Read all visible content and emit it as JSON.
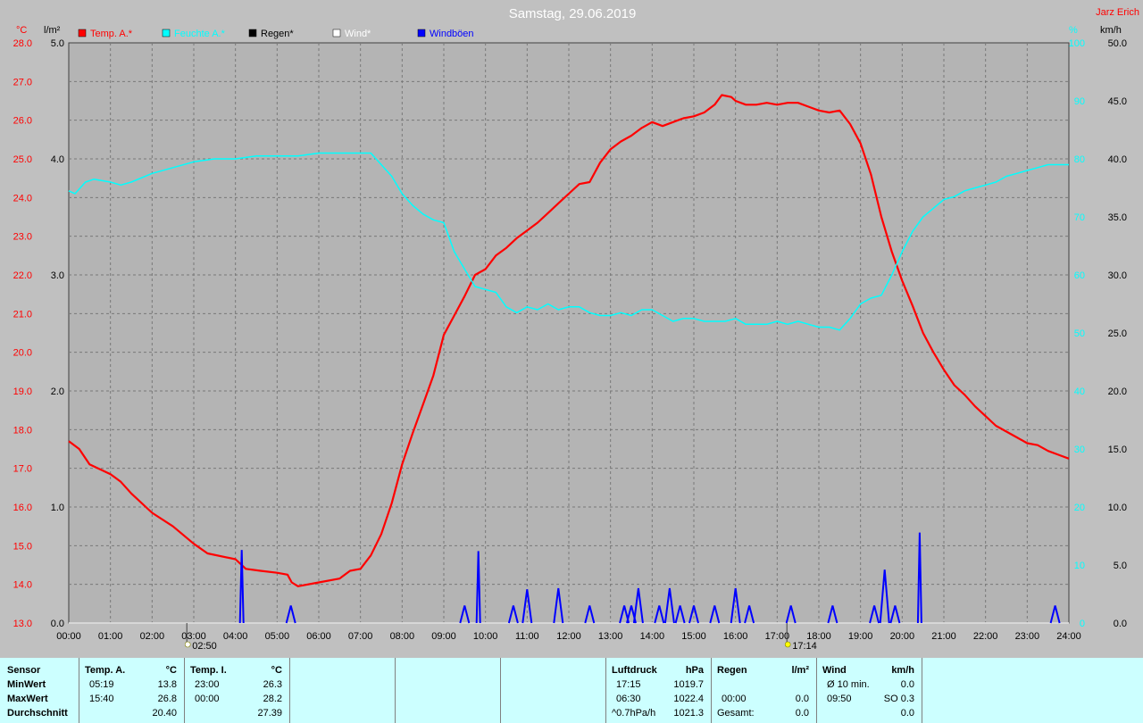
{
  "title": "Samstag, 29.06.2019",
  "author": "Jarz Erich",
  "axes": {
    "left_unit_temp": "°C",
    "left_unit_rain": "l/m²",
    "right_unit_hum": "%",
    "right_unit_wind": "km/h"
  },
  "colors": {
    "background": "#c0c0c0",
    "plot_bg": "#b4b4b4",
    "temp": "#ff0000",
    "humidity": "#00ffff",
    "rain": "#000000",
    "wind": "#ffffff",
    "gusts": "#0000ff",
    "footer": "#ccffff"
  },
  "chart_data": {
    "type": "line",
    "grid": true,
    "legend_placement": "top-left",
    "x_tick_labels": [
      "00:00",
      "01:00",
      "02:00",
      "03:00",
      "04:00",
      "05:00",
      "06:00",
      "07:00",
      "08:00",
      "09:00",
      "10:00",
      "11:00",
      "12:00",
      "13:00",
      "14:00",
      "15:00",
      "16:00",
      "17:00",
      "18:00",
      "19:00",
      "20:00",
      "21:00",
      "22:00",
      "23:00",
      "24:00"
    ],
    "xlim_hours": [
      0,
      24
    ],
    "temp_ticks": [
      "28.0",
      "27.0",
      "26.0",
      "25.0",
      "24.0",
      "23.0",
      "22.0",
      "21.0",
      "20.0",
      "19.0",
      "18.0",
      "17.0",
      "16.0",
      "15.0",
      "14.0",
      "13.0"
    ],
    "rain_ticks": [
      "5.0",
      "4.0",
      "3.0",
      "2.0",
      "1.0",
      "0.0"
    ],
    "hum_ticks": [
      "100",
      "90",
      "80",
      "70",
      "60",
      "50",
      "40",
      "30",
      "20",
      "10",
      "0"
    ],
    "wind_ticks": [
      "50.0",
      "45.0",
      "40.0",
      "35.0",
      "30.0",
      "25.0",
      "20.0",
      "15.0",
      "10.0",
      "5.0",
      "0.0"
    ],
    "ylim_temp": [
      13,
      28
    ],
    "ylim_rain": [
      0,
      5
    ],
    "ylim_humidity": [
      0,
      100
    ],
    "ylim_wind": [
      0,
      50
    ],
    "sun_markers": [
      {
        "hour": 2.833,
        "label": "02:50"
      },
      {
        "hour": 17.233,
        "label": "17:14"
      }
    ],
    "series": [
      {
        "name": "Temp. A.*",
        "axis": "temp",
        "color": "#ff0000",
        "points": [
          [
            0,
            17.7
          ],
          [
            0.25,
            17.5
          ],
          [
            0.5,
            17.1
          ],
          [
            1,
            16.85
          ],
          [
            1.25,
            16.65
          ],
          [
            1.5,
            16.35
          ],
          [
            2,
            15.85
          ],
          [
            2.5,
            15.5
          ],
          [
            3,
            15.05
          ],
          [
            3.33,
            14.8
          ],
          [
            4,
            14.65
          ],
          [
            4.25,
            14.4
          ],
          [
            4.6,
            14.35
          ],
          [
            5,
            14.3
          ],
          [
            5.25,
            14.25
          ],
          [
            5.35,
            14.05
          ],
          [
            5.5,
            13.95
          ],
          [
            6,
            14.05
          ],
          [
            6.5,
            14.15
          ],
          [
            6.75,
            14.35
          ],
          [
            7,
            14.4
          ],
          [
            7.25,
            14.75
          ],
          [
            7.5,
            15.3
          ],
          [
            7.75,
            16.1
          ],
          [
            8,
            17.1
          ],
          [
            8.25,
            17.9
          ],
          [
            8.5,
            18.65
          ],
          [
            8.75,
            19.4
          ],
          [
            9,
            20.45
          ],
          [
            9.25,
            20.95
          ],
          [
            9.5,
            21.45
          ],
          [
            9.75,
            22.0
          ],
          [
            10,
            22.15
          ],
          [
            10.25,
            22.5
          ],
          [
            10.5,
            22.7
          ],
          [
            10.75,
            22.95
          ],
          [
            11,
            23.15
          ],
          [
            11.25,
            23.35
          ],
          [
            11.5,
            23.6
          ],
          [
            11.75,
            23.85
          ],
          [
            12,
            24.1
          ],
          [
            12.25,
            24.35
          ],
          [
            12.5,
            24.4
          ],
          [
            12.75,
            24.9
          ],
          [
            13,
            25.25
          ],
          [
            13.25,
            25.45
          ],
          [
            13.5,
            25.6
          ],
          [
            13.75,
            25.8
          ],
          [
            14,
            25.95
          ],
          [
            14.25,
            25.85
          ],
          [
            14.5,
            25.95
          ],
          [
            14.75,
            26.05
          ],
          [
            15,
            26.1
          ],
          [
            15.25,
            26.2
          ],
          [
            15.5,
            26.4
          ],
          [
            15.67,
            26.65
          ],
          [
            15.9,
            26.6
          ],
          [
            16,
            26.5
          ],
          [
            16.25,
            26.4
          ],
          [
            16.5,
            26.4
          ],
          [
            16.75,
            26.45
          ],
          [
            17,
            26.4
          ],
          [
            17.25,
            26.45
          ],
          [
            17.5,
            26.45
          ],
          [
            17.75,
            26.35
          ],
          [
            18,
            26.25
          ],
          [
            18.25,
            26.2
          ],
          [
            18.5,
            26.25
          ],
          [
            18.75,
            25.9
          ],
          [
            19,
            25.4
          ],
          [
            19.25,
            24.6
          ],
          [
            19.5,
            23.5
          ],
          [
            19.75,
            22.6
          ],
          [
            20,
            21.85
          ],
          [
            20.25,
            21.2
          ],
          [
            20.5,
            20.5
          ],
          [
            20.75,
            20.0
          ],
          [
            21,
            19.55
          ],
          [
            21.25,
            19.15
          ],
          [
            21.5,
            18.9
          ],
          [
            21.75,
            18.6
          ],
          [
            22,
            18.35
          ],
          [
            22.25,
            18.1
          ],
          [
            22.5,
            17.95
          ],
          [
            22.75,
            17.8
          ],
          [
            23,
            17.65
          ],
          [
            23.25,
            17.6
          ],
          [
            23.5,
            17.45
          ],
          [
            23.75,
            17.35
          ],
          [
            24,
            17.25
          ]
        ]
      },
      {
        "name": "Feuchte A.*",
        "axis": "humidity",
        "color": "#00ffff",
        "points": [
          [
            0,
            74.5
          ],
          [
            0.15,
            74
          ],
          [
            0.4,
            76
          ],
          [
            0.6,
            76.5
          ],
          [
            1,
            76
          ],
          [
            1.25,
            75.5
          ],
          [
            1.5,
            76
          ],
          [
            2,
            77.5
          ],
          [
            2.5,
            78.5
          ],
          [
            3,
            79.5
          ],
          [
            3.5,
            80
          ],
          [
            4,
            80
          ],
          [
            4.5,
            80.5
          ],
          [
            5,
            80.5
          ],
          [
            5.5,
            80.5
          ],
          [
            6,
            81
          ],
          [
            6.5,
            81
          ],
          [
            7,
            81
          ],
          [
            7.25,
            81
          ],
          [
            7.5,
            79
          ],
          [
            7.75,
            77
          ],
          [
            8,
            74
          ],
          [
            8.25,
            72
          ],
          [
            8.5,
            70.5
          ],
          [
            8.75,
            69.5
          ],
          [
            9,
            69
          ],
          [
            9.25,
            64
          ],
          [
            9.5,
            61
          ],
          [
            9.75,
            58
          ],
          [
            10,
            57.5
          ],
          [
            10.25,
            57
          ],
          [
            10.5,
            54.5
          ],
          [
            10.75,
            53.5
          ],
          [
            11,
            54.5
          ],
          [
            11.25,
            54
          ],
          [
            11.5,
            55
          ],
          [
            11.75,
            54
          ],
          [
            12,
            54.5
          ],
          [
            12.25,
            54.5
          ],
          [
            12.5,
            53.5
          ],
          [
            12.75,
            53
          ],
          [
            13,
            53
          ],
          [
            13.25,
            53.5
          ],
          [
            13.5,
            53
          ],
          [
            13.75,
            54
          ],
          [
            14,
            54
          ],
          [
            14.25,
            53
          ],
          [
            14.5,
            52
          ],
          [
            14.75,
            52.5
          ],
          [
            15,
            52.5
          ],
          [
            15.25,
            52
          ],
          [
            15.5,
            52
          ],
          [
            15.75,
            52
          ],
          [
            16,
            52.5
          ],
          [
            16.25,
            51.5
          ],
          [
            16.5,
            51.5
          ],
          [
            16.75,
            51.5
          ],
          [
            17,
            52
          ],
          [
            17.25,
            51.5
          ],
          [
            17.5,
            52
          ],
          [
            17.75,
            51.5
          ],
          [
            18,
            51
          ],
          [
            18.25,
            51
          ],
          [
            18.5,
            50.5
          ],
          [
            18.75,
            52.5
          ],
          [
            19,
            55
          ],
          [
            19.25,
            56
          ],
          [
            19.5,
            56.5
          ],
          [
            19.75,
            60
          ],
          [
            20,
            64
          ],
          [
            20.25,
            67.5
          ],
          [
            20.5,
            70
          ],
          [
            20.75,
            71.5
          ],
          [
            21,
            73
          ],
          [
            21.25,
            73.5
          ],
          [
            21.5,
            74.5
          ],
          [
            21.75,
            75
          ],
          [
            22,
            75.5
          ],
          [
            22.25,
            76
          ],
          [
            22.5,
            77
          ],
          [
            22.75,
            77.5
          ],
          [
            23,
            78
          ],
          [
            23.25,
            78.5
          ],
          [
            23.5,
            79
          ],
          [
            23.75,
            79
          ],
          [
            24,
            79
          ]
        ]
      },
      {
        "name": "Regen*",
        "axis": "rain",
        "color": "#000000",
        "points": [
          [
            0,
            0
          ],
          [
            24,
            0
          ]
        ]
      },
      {
        "name": "Wind*",
        "axis": "wind",
        "color": "#ffffff",
        "points": [
          [
            0,
            0
          ],
          [
            24,
            0
          ]
        ]
      },
      {
        "name": "Windböen",
        "axis": "wind",
        "color": "#0000ff",
        "spikes": [
          [
            4.15,
            6.3
          ],
          [
            5.33,
            1.5
          ],
          [
            9.5,
            1.5
          ],
          [
            9.83,
            6.2
          ],
          [
            10.67,
            1.5
          ],
          [
            11.0,
            2.9
          ],
          [
            11.75,
            3.0
          ],
          [
            12.5,
            1.5
          ],
          [
            13.33,
            1.5
          ],
          [
            13.5,
            1.5
          ],
          [
            13.67,
            3.0
          ],
          [
            14.17,
            1.5
          ],
          [
            14.42,
            3.0
          ],
          [
            14.67,
            1.5
          ],
          [
            15.0,
            1.5
          ],
          [
            15.5,
            1.5
          ],
          [
            16.0,
            3.0
          ],
          [
            16.33,
            1.5
          ],
          [
            17.33,
            1.5
          ],
          [
            18.33,
            1.5
          ],
          [
            19.33,
            1.5
          ],
          [
            19.58,
            4.6
          ],
          [
            19.83,
            1.5
          ],
          [
            20.42,
            7.8
          ],
          [
            23.67,
            1.5
          ]
        ]
      }
    ]
  },
  "stats": {
    "sensor_label": "Sensor",
    "min_label": "MinWert",
    "max_label": "MaxWert",
    "avg_label": "Durchschnitt",
    "temp_a": {
      "title": "Temp. A.",
      "unit": "°C",
      "min_time": "05:19",
      "min": "13.8",
      "max_time": "15:40",
      "max": "26.8",
      "avg": "20.40"
    },
    "temp_i": {
      "title": "Temp. I.",
      "unit": "°C",
      "min_time": "23:00",
      "min": "26.3",
      "max_time": "00:00",
      "max": "28.2",
      "avg": "27.39"
    },
    "pressure": {
      "title": "Luftdruck",
      "unit": "hPa",
      "min_time": "17:15",
      "min": "1019.7",
      "max_time": "06:30",
      "max": "1022.4",
      "trend_label": "^0.7hPa/h",
      "avg": "1021.3"
    },
    "rain": {
      "title": "Regen",
      "unit": "l/m²",
      "max_time": "00:00",
      "max": "0.0",
      "total_label": "Gesamt:",
      "total": "0.0"
    },
    "wind": {
      "title": "Wind",
      "unit": "km/h",
      "avg10_label": "Ø 10 min.",
      "avg10": "0.0",
      "max_time": "09:50",
      "dir": "SO 0.3",
      "avg": "0.0"
    }
  }
}
